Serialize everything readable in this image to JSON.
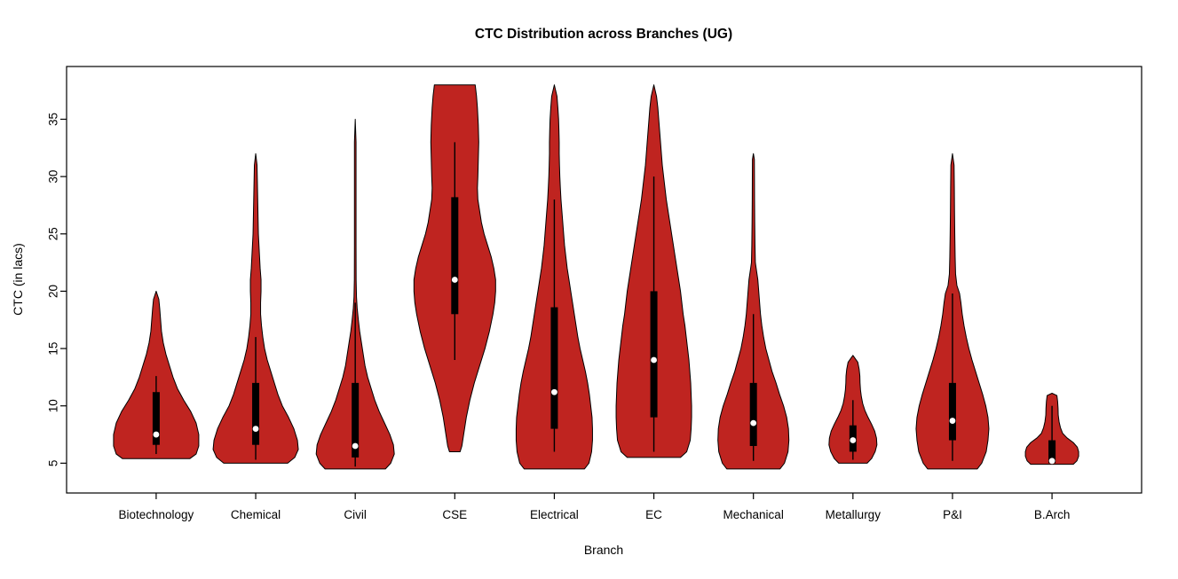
{
  "chart_data": {
    "type": "violin",
    "title": "CTC Distribution across Branches (UG)",
    "xlabel": "Branch",
    "ylabel": "CTC (in lacs)",
    "ylim": [
      2.4,
      39.6
    ],
    "yticks": [
      5,
      10,
      15,
      20,
      25,
      30,
      35
    ],
    "grid": false,
    "legend": "none",
    "colors": {
      "violin_fill": "#bf2420",
      "violin_stroke": "#000000",
      "box": "#000000",
      "whisker": "#000000",
      "median": "#ffffff",
      "axis": "#000000"
    },
    "branches": [
      {
        "label": "Biotechnology",
        "median": 7.5,
        "q1": 6.6,
        "q3": 11.2,
        "whisker_low": 5.8,
        "whisker_high": 12.6,
        "min": 5.4,
        "max": 20,
        "outline": [
          [
            5.4,
            38
          ],
          [
            5.8,
            45
          ],
          [
            6.5,
            48
          ],
          [
            7.5,
            48
          ],
          [
            8.5,
            45
          ],
          [
            9.5,
            39
          ],
          [
            10.5,
            31
          ],
          [
            11.5,
            24
          ],
          [
            12.5,
            19
          ],
          [
            13.5,
            15
          ],
          [
            14.5,
            11
          ],
          [
            15.5,
            8
          ],
          [
            16.5,
            6
          ],
          [
            17.5,
            5
          ],
          [
            18.5,
            4
          ],
          [
            19.3,
            3
          ],
          [
            20,
            0
          ]
        ]
      },
      {
        "label": "Chemical",
        "median": 8.0,
        "q1": 6.6,
        "q3": 12.0,
        "whisker_low": 5.3,
        "whisker_high": 16,
        "min": 5.0,
        "max": 32,
        "outline": [
          [
            5.0,
            36
          ],
          [
            5.5,
            44
          ],
          [
            6.2,
            48
          ],
          [
            7,
            47
          ],
          [
            8,
            43
          ],
          [
            9,
            37
          ],
          [
            10,
            30
          ],
          [
            11,
            25
          ],
          [
            12,
            21
          ],
          [
            13,
            17
          ],
          [
            14,
            13
          ],
          [
            15,
            10
          ],
          [
            16,
            8
          ],
          [
            17,
            6.5
          ],
          [
            18,
            5.5
          ],
          [
            19,
            5.5
          ],
          [
            20,
            6
          ],
          [
            21,
            6
          ],
          [
            22,
            5
          ],
          [
            23.5,
            4
          ],
          [
            25,
            3
          ],
          [
            27,
            2.5
          ],
          [
            29,
            2
          ],
          [
            31,
            1.5
          ],
          [
            32,
            0
          ]
        ]
      },
      {
        "label": "Civil",
        "median": 6.5,
        "q1": 5.5,
        "q3": 12.0,
        "whisker_low": 4.7,
        "whisker_high": 19,
        "min": 4.5,
        "max": 35,
        "outline": [
          [
            4.5,
            34
          ],
          [
            5,
            40
          ],
          [
            5.8,
            44
          ],
          [
            6.6,
            43
          ],
          [
            7.5,
            39
          ],
          [
            8.5,
            33
          ],
          [
            9.5,
            27
          ],
          [
            10.5,
            22
          ],
          [
            11.5,
            18
          ],
          [
            12.5,
            14
          ],
          [
            13.5,
            11
          ],
          [
            14.5,
            9
          ],
          [
            15.5,
            7
          ],
          [
            16.5,
            5
          ],
          [
            17.5,
            3.5
          ],
          [
            18.5,
            2.2
          ],
          [
            19.5,
            1.4
          ],
          [
            21,
            1
          ],
          [
            24,
            0.9
          ],
          [
            27,
            0.9
          ],
          [
            30,
            0.9
          ],
          [
            33,
            0.9
          ],
          [
            35,
            0
          ]
        ]
      },
      {
        "label": "CSE",
        "median": 21.0,
        "q1": 18.0,
        "q3": 28.2,
        "whisker_low": 14,
        "whisker_high": 33,
        "min": 6.0,
        "max": 38,
        "outline": [
          [
            6.0,
            6
          ],
          [
            6.5,
            8
          ],
          [
            7.5,
            10
          ],
          [
            9,
            13
          ],
          [
            10.5,
            17
          ],
          [
            12,
            22
          ],
          [
            13.5,
            28
          ],
          [
            15,
            34
          ],
          [
            16.5,
            39
          ],
          [
            18,
            43
          ],
          [
            19,
            45
          ],
          [
            20,
            46
          ],
          [
            21,
            46
          ],
          [
            22,
            44
          ],
          [
            23,
            41
          ],
          [
            24,
            37
          ],
          [
            25,
            33
          ],
          [
            26,
            30
          ],
          [
            27,
            28
          ],
          [
            28,
            26
          ],
          [
            29,
            25.5
          ],
          [
            30,
            26
          ],
          [
            31.5,
            26.5
          ],
          [
            33,
            27
          ],
          [
            34.5,
            26.5
          ],
          [
            36,
            25.5
          ],
          [
            37,
            24.5
          ],
          [
            38,
            23
          ]
        ]
      },
      {
        "label": "Electrical",
        "median": 11.2,
        "q1": 8.0,
        "q3": 18.6,
        "whisker_low": 6.0,
        "whisker_high": 28,
        "min": 4.5,
        "max": 38,
        "outline": [
          [
            4.5,
            34
          ],
          [
            5,
            39
          ],
          [
            6,
            42
          ],
          [
            7,
            43
          ],
          [
            8,
            43
          ],
          [
            9,
            42.5
          ],
          [
            10,
            41
          ],
          [
            11,
            39.5
          ],
          [
            12,
            37.5
          ],
          [
            13,
            35
          ],
          [
            14,
            32
          ],
          [
            15,
            29
          ],
          [
            16,
            26.5
          ],
          [
            17,
            24.5
          ],
          [
            18,
            22.5
          ],
          [
            19,
            20.5
          ],
          [
            20,
            18.5
          ],
          [
            21,
            16.5
          ],
          [
            22,
            14.5
          ],
          [
            23,
            13
          ],
          [
            24,
            11.5
          ],
          [
            25,
            10.5
          ],
          [
            26,
            9.5
          ],
          [
            27,
            8.5
          ],
          [
            28,
            7.5
          ],
          [
            29,
            6.8
          ],
          [
            30,
            6.2
          ],
          [
            31,
            5.8
          ],
          [
            32,
            5.5
          ],
          [
            33,
            5.5
          ],
          [
            34,
            5.2
          ],
          [
            35,
            4.8
          ],
          [
            36,
            4
          ],
          [
            37,
            3
          ],
          [
            38,
            0
          ]
        ]
      },
      {
        "label": "EC",
        "median": 14.0,
        "q1": 9.0,
        "q3": 20.0,
        "whisker_low": 6.0,
        "whisker_high": 30,
        "min": 5.5,
        "max": 38,
        "outline": [
          [
            5.5,
            30
          ],
          [
            6,
            37
          ],
          [
            7,
            41
          ],
          [
            8,
            42
          ],
          [
            9,
            42.5
          ],
          [
            10,
            42.5
          ],
          [
            11,
            42
          ],
          [
            12,
            41.5
          ],
          [
            13,
            40.5
          ],
          [
            14,
            39.5
          ],
          [
            15,
            38
          ],
          [
            16,
            36.5
          ],
          [
            17,
            35
          ],
          [
            18,
            33
          ],
          [
            19,
            31.5
          ],
          [
            20,
            30
          ],
          [
            21,
            28
          ],
          [
            22,
            26
          ],
          [
            23,
            24
          ],
          [
            24,
            22
          ],
          [
            25,
            20
          ],
          [
            26,
            18
          ],
          [
            27,
            16
          ],
          [
            28,
            14
          ],
          [
            29,
            12.5
          ],
          [
            30,
            11
          ],
          [
            31,
            9.5
          ],
          [
            32,
            8.5
          ],
          [
            33,
            7.5
          ],
          [
            34,
            6.5
          ],
          [
            35,
            5.5
          ],
          [
            36,
            4.5
          ],
          [
            37,
            3
          ],
          [
            38,
            0
          ]
        ]
      },
      {
        "label": "Mechanical",
        "median": 8.5,
        "q1": 6.5,
        "q3": 12.0,
        "whisker_low": 5.2,
        "whisker_high": 18,
        "min": 4.5,
        "max": 32,
        "outline": [
          [
            4.5,
            30
          ],
          [
            5,
            35
          ],
          [
            6,
            39
          ],
          [
            7,
            40
          ],
          [
            8,
            39.5
          ],
          [
            9,
            37.5
          ],
          [
            10,
            34
          ],
          [
            11,
            29.5
          ],
          [
            12,
            25.5
          ],
          [
            13,
            21
          ],
          [
            14,
            17.5
          ],
          [
            15,
            14
          ],
          [
            16,
            11.5
          ],
          [
            17,
            9.5
          ],
          [
            18,
            8
          ],
          [
            19,
            7
          ],
          [
            20,
            6
          ],
          [
            21,
            5
          ],
          [
            21.8,
            3.5
          ],
          [
            22.5,
            2.2
          ],
          [
            24,
            1.8
          ],
          [
            26,
            1.5
          ],
          [
            28,
            1.3
          ],
          [
            30,
            1.2
          ],
          [
            31.5,
            1.1
          ],
          [
            32,
            0
          ]
        ]
      },
      {
        "label": "Metallurgy",
        "median": 7.0,
        "q1": 6.0,
        "q3": 8.3,
        "whisker_low": 5.3,
        "whisker_high": 10.5,
        "min": 5.0,
        "max": 14.4,
        "outline": [
          [
            5.0,
            16
          ],
          [
            5.4,
            21
          ],
          [
            6,
            25
          ],
          [
            6.6,
            27
          ],
          [
            7.2,
            26.5
          ],
          [
            7.8,
            24.5
          ],
          [
            8.4,
            21
          ],
          [
            9,
            17
          ],
          [
            9.6,
            13.5
          ],
          [
            10.2,
            11
          ],
          [
            10.8,
            9.5
          ],
          [
            11.4,
            8.5
          ],
          [
            12,
            8
          ],
          [
            12.6,
            7.8
          ],
          [
            13.2,
            7
          ],
          [
            13.8,
            5.5
          ],
          [
            14.4,
            0
          ]
        ]
      },
      {
        "label": "P&I",
        "median": 8.7,
        "q1": 7.0,
        "q3": 12.0,
        "whisker_low": 5.2,
        "whisker_high": 19.8,
        "min": 4.5,
        "max": 32,
        "outline": [
          [
            4.5,
            28
          ],
          [
            5,
            33
          ],
          [
            6,
            38
          ],
          [
            7,
            40
          ],
          [
            8,
            41
          ],
          [
            9,
            40
          ],
          [
            10,
            37.5
          ],
          [
            11,
            34
          ],
          [
            12,
            30
          ],
          [
            13,
            26
          ],
          [
            14,
            22
          ],
          [
            15,
            18.5
          ],
          [
            16,
            15.5
          ],
          [
            17,
            13
          ],
          [
            18,
            11
          ],
          [
            19,
            9.5
          ],
          [
            19.8,
            8
          ],
          [
            20.5,
            5
          ],
          [
            21.5,
            3.5
          ],
          [
            23,
            3
          ],
          [
            25,
            2.6
          ],
          [
            27,
            2.3
          ],
          [
            29,
            2.1
          ],
          [
            31,
            1.8
          ],
          [
            32,
            0
          ]
        ]
      },
      {
        "label": "B.Arch",
        "median": 5.2,
        "q1": 5.0,
        "q3": 7.0,
        "whisker_low": 5.0,
        "whisker_high": 10,
        "min": 4.9,
        "max": 11.1,
        "outline": [
          [
            4.9,
            24
          ],
          [
            5.2,
            28
          ],
          [
            5.6,
            30
          ],
          [
            6.0,
            30
          ],
          [
            6.4,
            28.5
          ],
          [
            6.8,
            24
          ],
          [
            7.2,
            17
          ],
          [
            7.6,
            12
          ],
          [
            8.1,
            9.5
          ],
          [
            8.6,
            8
          ],
          [
            9.2,
            7
          ],
          [
            9.8,
            6.8
          ],
          [
            10.4,
            6.3
          ],
          [
            10.9,
            5.5
          ],
          [
            11.1,
            0
          ]
        ]
      }
    ]
  }
}
